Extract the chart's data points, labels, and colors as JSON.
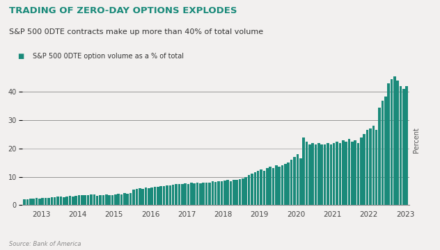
{
  "title": "TRADING OF ZERO-DAY OPTIONS EXPLODES",
  "subtitle": "S&P 500 0DTE contracts make up more than 40% of total volume",
  "legend_label": "S&P 500 0DTE option volume as a % of total",
  "source": "Source: Bank of America",
  "ylabel": "Percent",
  "bar_color": "#1a8a7a",
  "background_color": "#f2f0ef",
  "title_color": "#1a8a7a",
  "gridline_color": "#888888",
  "ylim": [
    0,
    46
  ],
  "yticks": [
    0,
    10,
    20,
    30,
    40
  ],
  "monthly_values": [
    2.0,
    2.1,
    2.2,
    2.3,
    2.4,
    2.3,
    2.5,
    2.4,
    2.6,
    2.8,
    2.7,
    2.9,
    3.0,
    2.8,
    3.0,
    3.2,
    3.1,
    3.3,
    3.5,
    3.4,
    3.6,
    3.5,
    3.7,
    3.8,
    3.2,
    3.4,
    3.5,
    3.8,
    3.6,
    3.5,
    3.7,
    4.0,
    3.8,
    4.2,
    4.0,
    4.3,
    5.5,
    5.8,
    6.0,
    5.8,
    6.2,
    6.0,
    6.3,
    6.5,
    6.4,
    6.6,
    6.8,
    7.0,
    7.0,
    7.2,
    7.5,
    7.3,
    7.4,
    7.6,
    7.5,
    7.8,
    7.6,
    7.8,
    7.7,
    8.0,
    7.8,
    8.0,
    8.3,
    8.1,
    8.5,
    8.3,
    8.6,
    8.8,
    8.5,
    8.8,
    9.0,
    9.2,
    9.5,
    10.0,
    10.5,
    11.0,
    11.5,
    12.0,
    12.5,
    12.0,
    13.0,
    13.5,
    13.0,
    14.0,
    13.5,
    14.0,
    14.5,
    15.0,
    16.0,
    17.0,
    18.0,
    16.5,
    24.0,
    22.5,
    21.5,
    22.0,
    21.5,
    22.0,
    21.5,
    21.5,
    22.0,
    21.5,
    22.0,
    22.5,
    22.0,
    23.0,
    22.5,
    23.5,
    22.5,
    23.0,
    22.0,
    24.0,
    25.0,
    26.5,
    27.0,
    28.0,
    26.5,
    34.5,
    37.0,
    38.5,
    43.0,
    44.5,
    45.5,
    44.0,
    42.0,
    41.0,
    42.0
  ],
  "year_starts": [
    0,
    12,
    24,
    36,
    48,
    60,
    72,
    84,
    96,
    108,
    120
  ],
  "xtick_labels": [
    "2013",
    "2014",
    "2015",
    "2016",
    "2017",
    "2018",
    "2019",
    "2020",
    "2021",
    "2022",
    "2023"
  ]
}
